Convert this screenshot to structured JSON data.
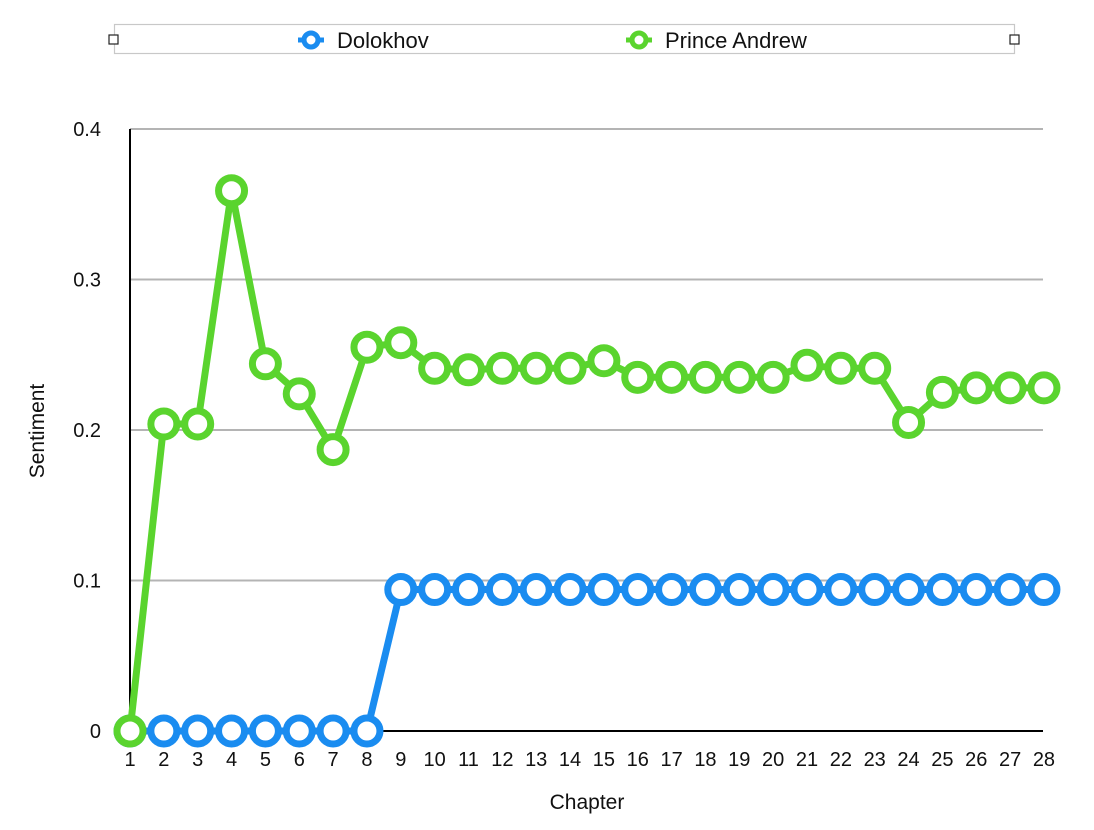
{
  "chart_data": {
    "type": "line",
    "title": "",
    "xlabel": "Chapter",
    "ylabel": "Sentiment",
    "x": [
      1,
      2,
      3,
      4,
      5,
      6,
      7,
      8,
      9,
      10,
      11,
      12,
      13,
      14,
      15,
      16,
      17,
      18,
      19,
      20,
      21,
      22,
      23,
      24,
      25,
      26,
      27,
      28
    ],
    "x_tick_labels": [
      "1",
      "2",
      "3",
      "4",
      "5",
      "6",
      "7",
      "8",
      "9",
      "10",
      "11",
      "12",
      "13",
      "14",
      "15",
      "16",
      "17",
      "18",
      "19",
      "20",
      "21",
      "22",
      "23",
      "24",
      "25",
      "26",
      "27",
      "28"
    ],
    "ylim": [
      0,
      0.4
    ],
    "y_ticks": [
      0,
      0.1,
      0.2,
      0.3,
      0.4
    ],
    "y_tick_labels": [
      "0",
      "0.1",
      "0.2",
      "0.3",
      "0.4"
    ],
    "grid": "horizontal",
    "legend_position": "top-center",
    "series": [
      {
        "name": "Dolokhov",
        "color": "#1a8cf0",
        "values": [
          0,
          0,
          0,
          0,
          0,
          0,
          0,
          0,
          0.094,
          0.094,
          0.094,
          0.094,
          0.094,
          0.094,
          0.094,
          0.094,
          0.094,
          0.094,
          0.094,
          0.094,
          0.094,
          0.094,
          0.094,
          0.094,
          0.094,
          0.094,
          0.094,
          0.094
        ]
      },
      {
        "name": "Prince Andrew",
        "color": "#5ad42e",
        "values": [
          0,
          0.204,
          0.204,
          0.359,
          0.244,
          0.224,
          0.187,
          0.255,
          0.258,
          0.241,
          0.24,
          0.241,
          0.241,
          0.241,
          0.246,
          0.235,
          0.235,
          0.235,
          0.235,
          0.235,
          0.243,
          0.241,
          0.241,
          0.205,
          0.225,
          0.228,
          0.228,
          0.228
        ]
      }
    ]
  }
}
